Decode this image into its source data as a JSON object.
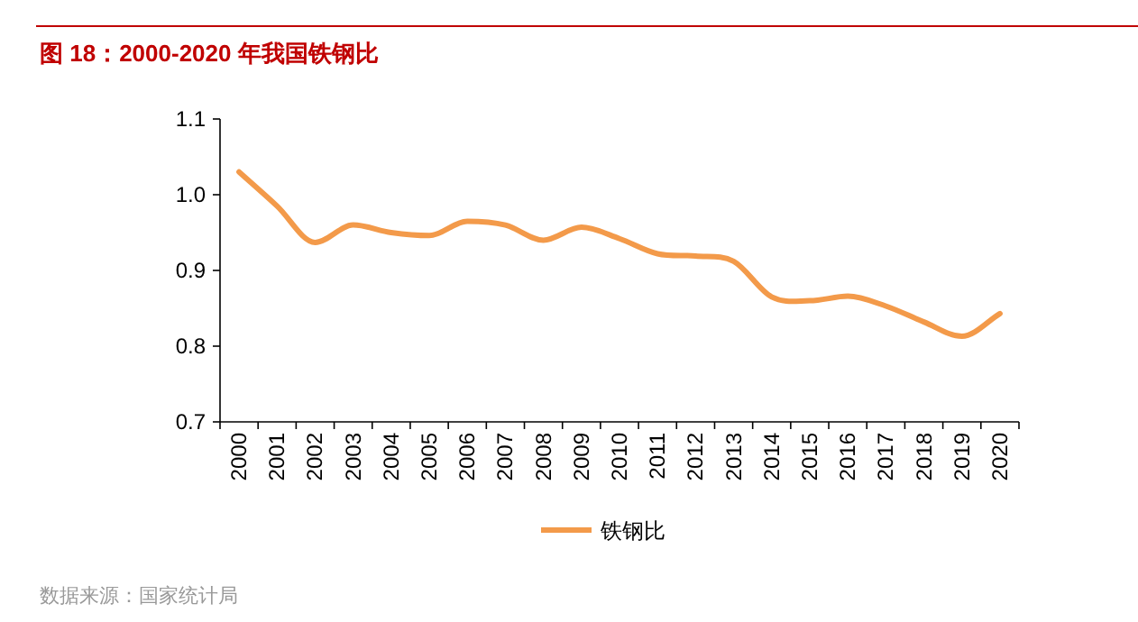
{
  "chart_data": {
    "type": "line",
    "title": "图 18：2000-2020 年我国铁钢比",
    "categories": [
      "2000",
      "2001",
      "2002",
      "2003",
      "2004",
      "2005",
      "2006",
      "2007",
      "2008",
      "2009",
      "2010",
      "2011",
      "2012",
      "2013",
      "2014",
      "2015",
      "2016",
      "2017",
      "2018",
      "2019",
      "2020"
    ],
    "series": [
      {
        "name": "铁钢比",
        "color": "#f39a4a",
        "values": [
          1.03,
          0.985,
          0.937,
          0.96,
          0.95,
          0.946,
          0.965,
          0.96,
          0.94,
          0.957,
          0.942,
          0.922,
          0.919,
          0.912,
          0.865,
          0.86,
          0.866,
          0.853,
          0.832,
          0.813,
          0.843
        ]
      }
    ],
    "ylim": [
      0.7,
      1.1
    ],
    "yticks": [
      0.7,
      0.8,
      0.9,
      {
        "value": 1.0,
        "label": "1.0"
      },
      1.1
    ],
    "legend": "bottom",
    "grid": false,
    "marker": "none",
    "line_style": "solid",
    "annotations": [
      "数据来源：国家统计局"
    ]
  }
}
